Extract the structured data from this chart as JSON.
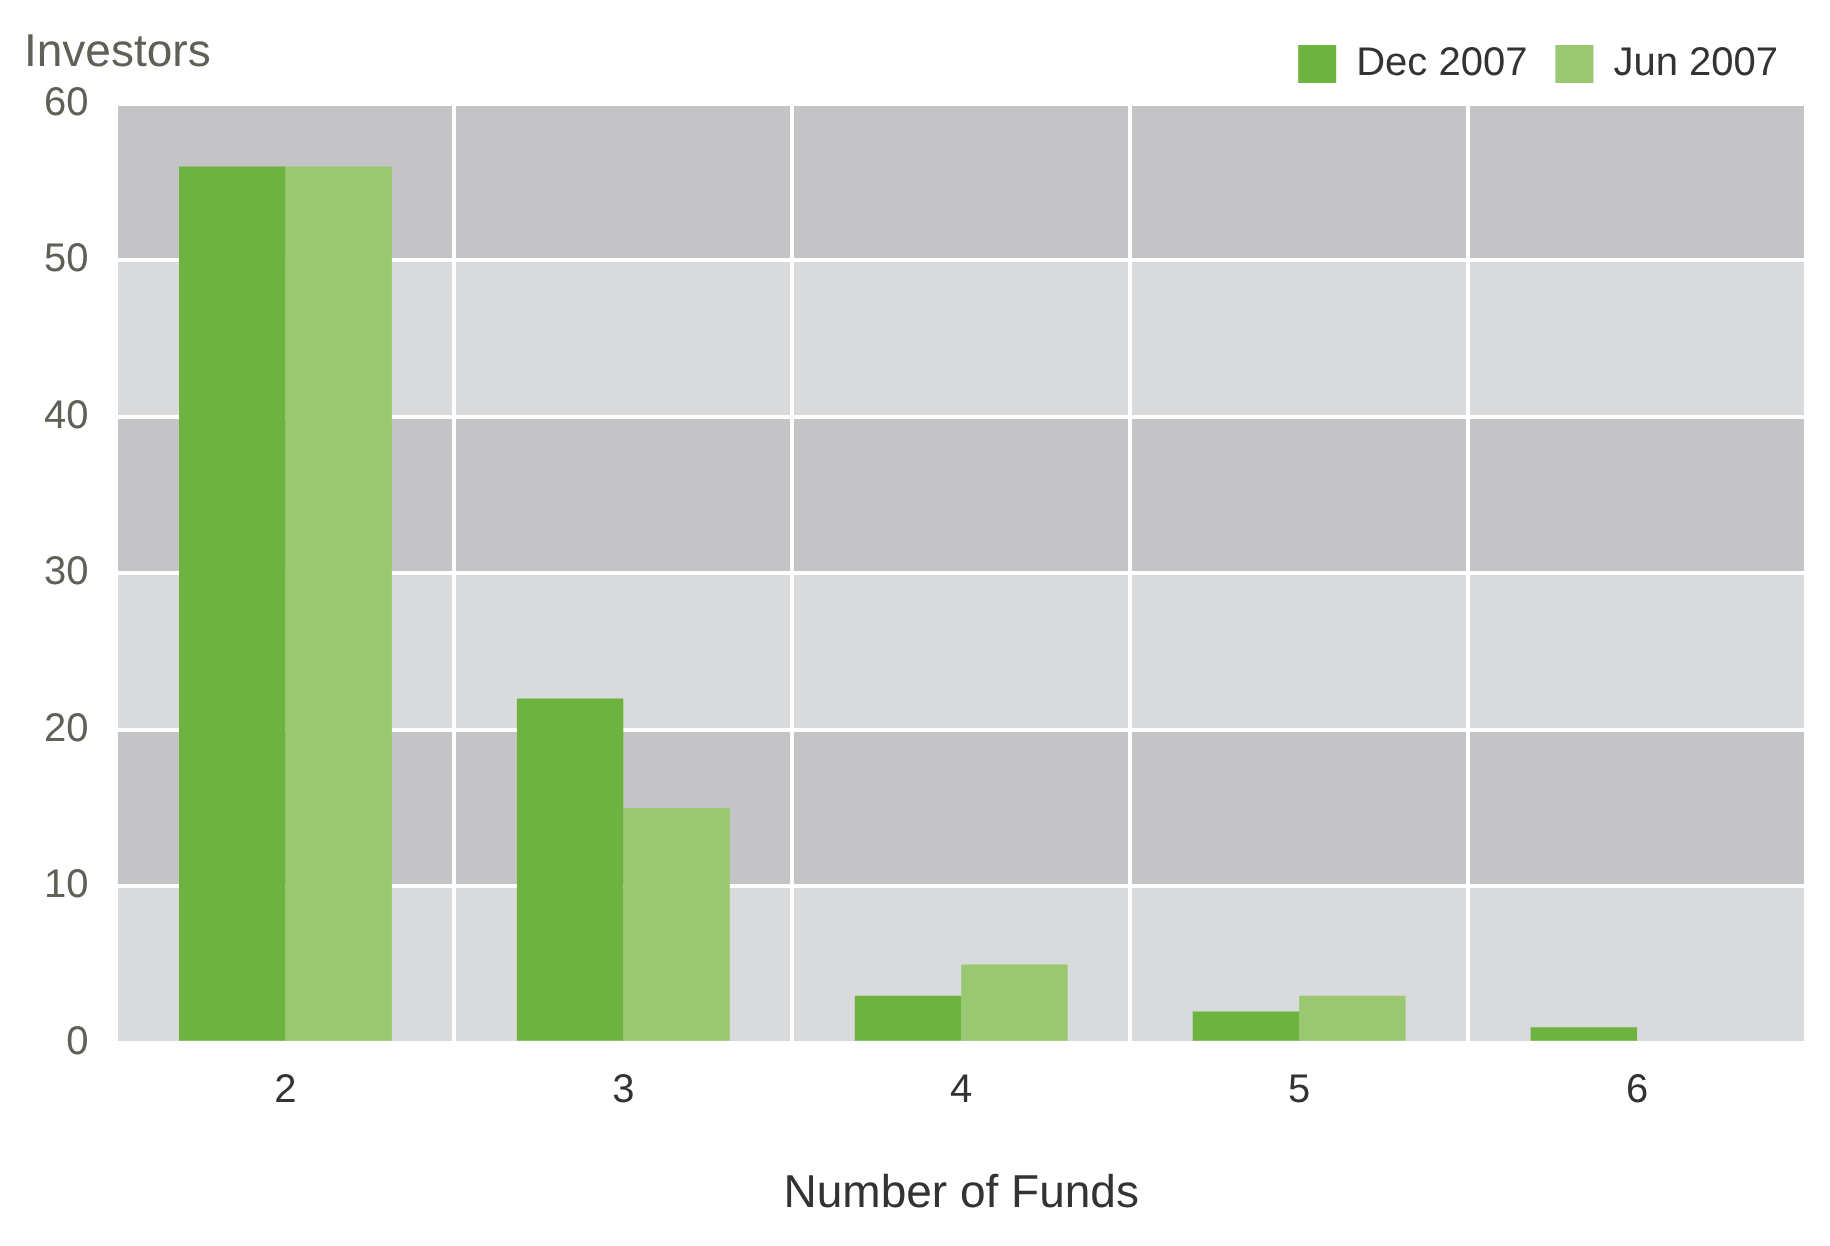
{
  "chart_data": {
    "type": "bar",
    "xlabel": "Number of Funds",
    "ylabel": "Investors",
    "categories": [
      "2",
      "3",
      "4",
      "5",
      "6"
    ],
    "series": [
      {
        "name": "Dec 2007",
        "color": "#6db33f",
        "values": [
          56,
          22,
          3,
          2,
          1
        ]
      },
      {
        "name": "Jun 2007",
        "color": "#9ac870",
        "values": [
          56,
          15,
          5,
          3,
          null
        ]
      }
    ],
    "ylim": [
      0,
      60
    ],
    "yticks": [
      0,
      10,
      20,
      30,
      40,
      50,
      60
    ],
    "grid": true,
    "legend": "top right"
  }
}
